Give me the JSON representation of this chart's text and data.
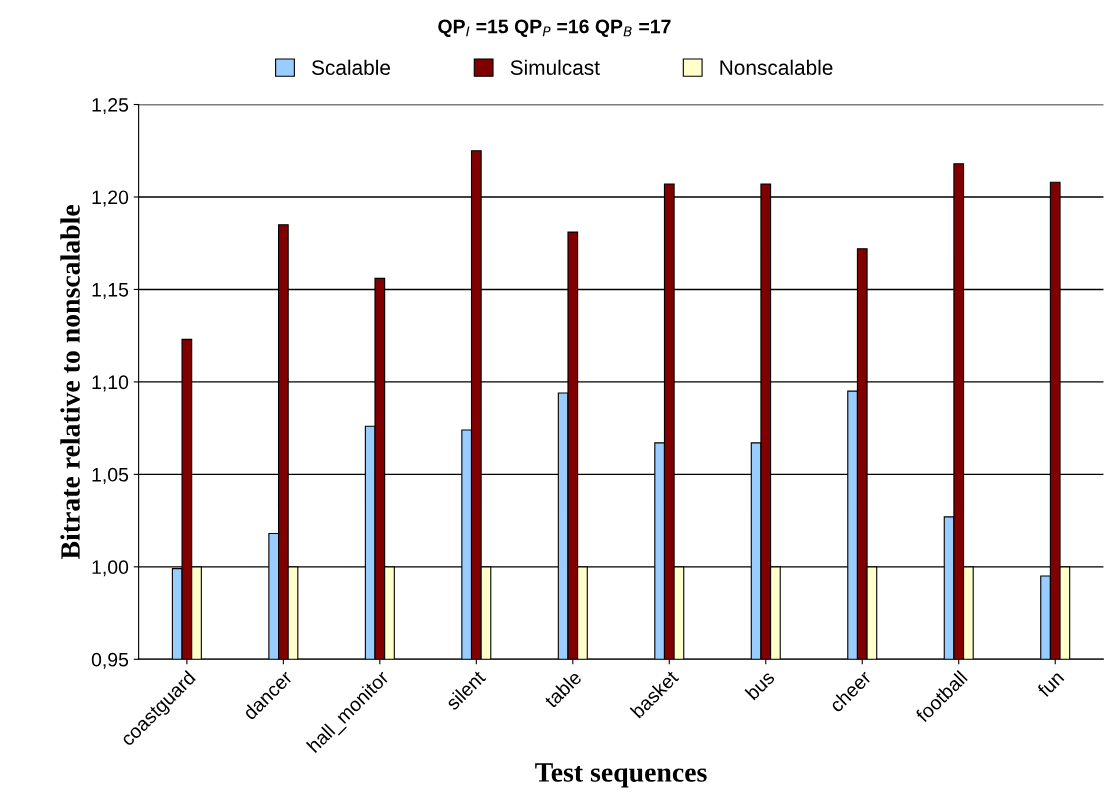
{
  "chart_data": {
    "type": "bar",
    "title": "QP$_{I}$ =15 QP$_{P}$ =16 QP$_{B}$ =17",
    "xlabel": "Test sequences",
    "ylabel": "Bitrate relative to nonscalable",
    "categories": [
      "coastguard",
      "dancer",
      "hall_monitor",
      "silent",
      "table",
      "basket",
      "bus",
      "cheer",
      "football",
      "fun"
    ],
    "series": [
      {
        "name": "Scalable",
        "color": "#99ccff",
        "values": [
          0.999,
          1.018,
          1.076,
          1.074,
          1.094,
          1.067,
          1.067,
          1.095,
          1.027,
          0.995
        ]
      },
      {
        "name": "Simulcast",
        "color": "#800000",
        "values": [
          1.123,
          1.185,
          1.156,
          1.225,
          1.181,
          1.207,
          1.207,
          1.172,
          1.218,
          1.208
        ]
      },
      {
        "name": "Nonscalable",
        "color": "#ffffcc",
        "values": [
          1.0,
          1.0,
          1.0,
          1.0,
          1.0,
          1.0,
          1.0,
          1.0,
          1.0,
          1.0
        ]
      }
    ],
    "ylim": [
      0.95,
      1.25
    ],
    "yticks": [
      {
        "value": 0.95,
        "label": "0,95"
      },
      {
        "value": 1.0,
        "label": "1,00"
      },
      {
        "value": 1.05,
        "label": "1,05"
      },
      {
        "value": 1.1,
        "label": "1,10"
      },
      {
        "value": 1.15,
        "label": "1,15"
      },
      {
        "value": 1.2,
        "label": "1,20"
      },
      {
        "value": 1.25,
        "label": "1,25"
      }
    ],
    "grid": "y",
    "legend": "top"
  }
}
